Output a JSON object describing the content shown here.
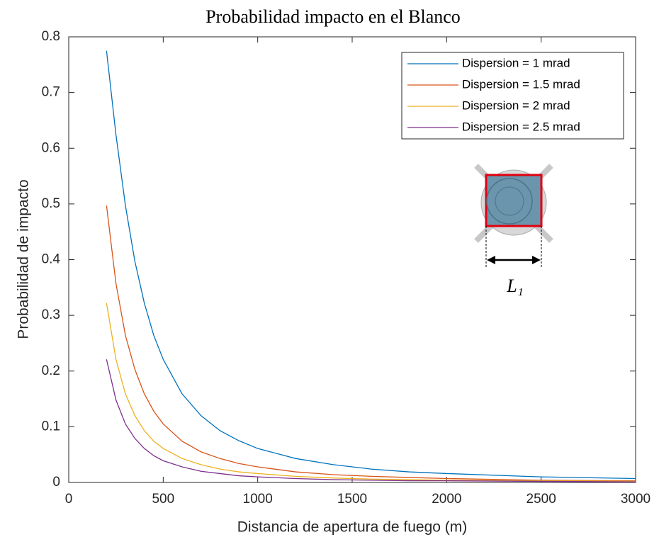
{
  "chart_data": {
    "type": "line",
    "title": "Probabilidad impacto en el Blanco",
    "xlabel": "Distancia de apertura de fuego (m)",
    "ylabel": "Probabilidad de impacto",
    "annotation": "L₁",
    "x": [
      200,
      250,
      300,
      350,
      400,
      450,
      500,
      600,
      700,
      800,
      900,
      1000,
      1200,
      1400,
      1600,
      1800,
      2000,
      2500,
      3000
    ],
    "series": [
      {
        "name": "Dispersion = 1 mrad",
        "color": "#0072bd",
        "values": [
          0.775,
          0.624,
          0.497,
          0.397,
          0.322,
          0.264,
          0.221,
          0.159,
          0.12,
          0.093,
          0.075,
          0.061,
          0.043,
          0.032,
          0.024,
          0.019,
          0.016,
          0.01,
          0.007
        ]
      },
      {
        "name": "Dispersion = 1.5 mrad",
        "color": "#d95319",
        "values": [
          0.497,
          0.357,
          0.264,
          0.203,
          0.159,
          0.128,
          0.105,
          0.074,
          0.055,
          0.043,
          0.034,
          0.028,
          0.019,
          0.014,
          0.011,
          0.009,
          0.007,
          0.004,
          0.003
        ]
      },
      {
        "name": "Dispersion = 2 mrad",
        "color": "#edb120",
        "values": [
          0.322,
          0.221,
          0.159,
          0.12,
          0.093,
          0.074,
          0.061,
          0.043,
          0.032,
          0.024,
          0.019,
          0.016,
          0.011,
          0.008,
          0.006,
          0.005,
          0.004,
          0.003,
          0.002
        ]
      },
      {
        "name": "Dispersion = 2.5 mrad",
        "color": "#7e2f8e",
        "values": [
          0.221,
          0.148,
          0.105,
          0.079,
          0.061,
          0.048,
          0.039,
          0.028,
          0.02,
          0.016,
          0.012,
          0.01,
          0.007,
          0.005,
          0.004,
          0.003,
          0.003,
          0.002,
          0.001
        ]
      }
    ],
    "xlim": [
      0,
      3000
    ],
    "xticks": [
      0,
      500,
      1000,
      1500,
      2000,
      2500,
      3000
    ],
    "ylim": [
      0,
      0.8
    ],
    "yticks": [
      0,
      0.1,
      0.2,
      0.3,
      0.4,
      0.5,
      0.6,
      0.7,
      0.8
    ],
    "legend": "upper-right",
    "grid": false
  }
}
